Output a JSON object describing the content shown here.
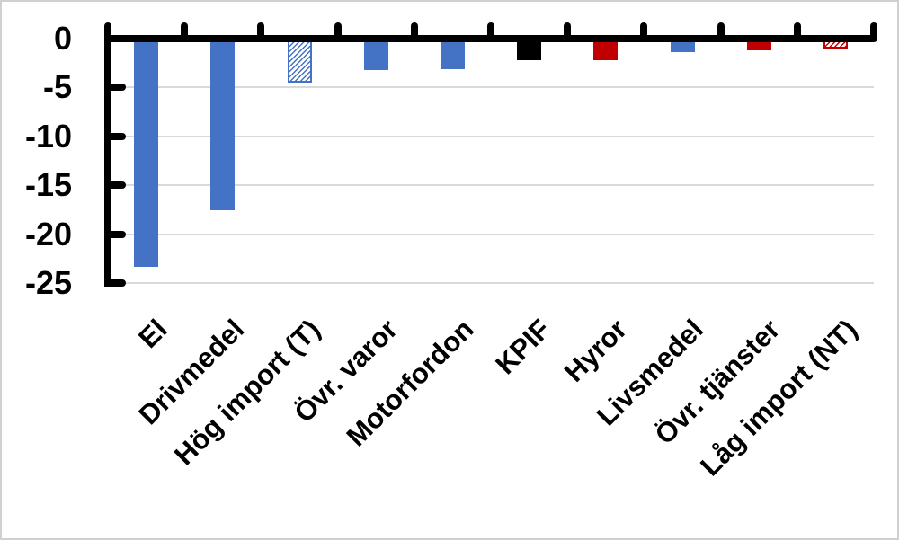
{
  "chart_data": {
    "type": "bar",
    "title": "",
    "categories": [
      "El",
      "Drivmedel",
      "Hög import (T)",
      "Övr. varor",
      "Motorfordon",
      "KPIF",
      "Hyror",
      "Livsmedel",
      "Övr. tjänster",
      "Låg import (NT)"
    ],
    "values": [
      -23.3,
      -17.5,
      -4.5,
      -3.2,
      -3.1,
      -2.2,
      -2.2,
      -1.4,
      -1.2,
      -1.0
    ],
    "bar_styles": [
      {
        "pattern": "solid",
        "color": "#4472C4"
      },
      {
        "pattern": "solid",
        "color": "#4472C4"
      },
      {
        "pattern": "hatch",
        "color": "#4472C4"
      },
      {
        "pattern": "solid",
        "color": "#4472C4"
      },
      {
        "pattern": "solid",
        "color": "#4472C4"
      },
      {
        "pattern": "solid",
        "color": "#000000"
      },
      {
        "pattern": "solid",
        "color": "#C00000"
      },
      {
        "pattern": "solid",
        "color": "#4472C4"
      },
      {
        "pattern": "solid",
        "color": "#C00000"
      },
      {
        "pattern": "hatch",
        "color": "#C00000"
      }
    ],
    "yticks": [
      0,
      -5,
      -10,
      -15,
      -20,
      -25
    ],
    "ylim": [
      -25,
      0
    ],
    "xlabel": "",
    "ylabel": "",
    "grid": true,
    "legend": "none",
    "x_tick_label_rotation_deg": 45,
    "colors": {
      "bar_blue": "#4472C4",
      "bar_red": "#C00000",
      "bar_black": "#000000",
      "gridline": "#D9D9D9",
      "axis": "#000000",
      "background": "#FFFFFF",
      "frame_border": "#D0D0D0"
    }
  }
}
